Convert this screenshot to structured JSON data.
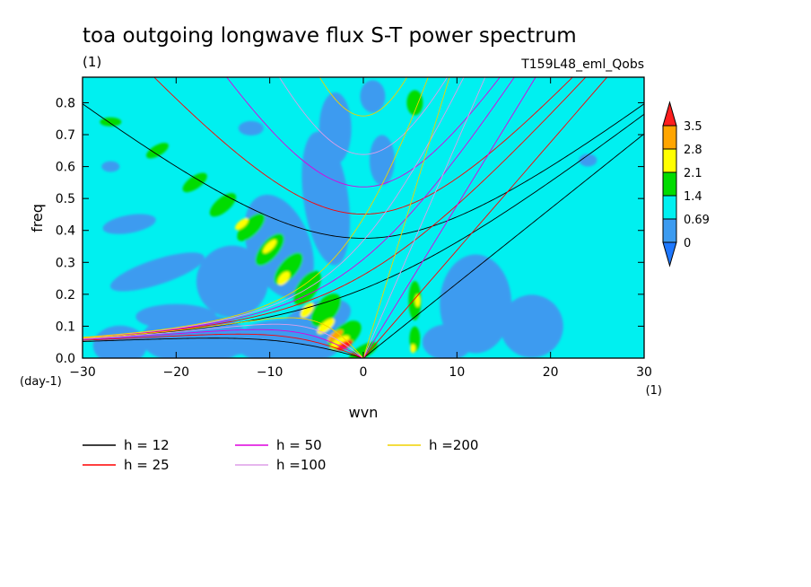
{
  "chart_data": {
    "type": "heatmap",
    "title": "toa outgoing longwave flux S-T power spectrum",
    "subtitle_left": "(1)",
    "subtitle_right": "T159L48_eml_Qobs",
    "xlabel": "wvn",
    "ylabel": "freq",
    "x_unit_label": "(1)",
    "y_unit_label": "(day-1)",
    "xlim": [
      -30,
      30
    ],
    "ylim": [
      0,
      0.88
    ],
    "x_ticks": [
      -30,
      -20,
      -10,
      0,
      10,
      20,
      30
    ],
    "x_tick_labels": [
      "−30",
      "−20",
      "−10",
      "0",
      "10",
      "20",
      "30"
    ],
    "y_ticks": [
      0,
      0.1,
      0.2,
      0.3,
      0.4,
      0.5,
      0.6,
      0.7,
      0.8
    ],
    "y_tick_labels": [
      "0.0",
      "0.1",
      "0.2",
      "0.3",
      "0.4",
      "0.5",
      "0.6",
      "0.7",
      "0.8"
    ],
    "grid": false,
    "colorbar": {
      "placement": "right",
      "levels": [
        0,
        0.69,
        1.4,
        2.1,
        2.8,
        3.5
      ],
      "level_labels": [
        "0",
        "0.69",
        "1.4",
        "2.1",
        "2.8",
        "3.5"
      ],
      "colors": [
        "#1e78ff",
        "#3c9bf0",
        "#00f0f0",
        "#00dc00",
        "#ffff00",
        "#ffa500",
        "#ff1e1e"
      ]
    },
    "dispersion_curves": [
      {
        "name": "h = 12",
        "h": 12,
        "color": "#000000"
      },
      {
        "name": "h = 25",
        "h": 25,
        "color": "#ff0000"
      },
      {
        "name": "h = 50",
        "h": 50,
        "color": "#dd00dd"
      },
      {
        "name": "h =100",
        "h": 100,
        "color": "#dd9ee8"
      },
      {
        "name": "h =200",
        "h": 200,
        "color": "#f0d200"
      }
    ],
    "legend_placement": "bottom"
  }
}
